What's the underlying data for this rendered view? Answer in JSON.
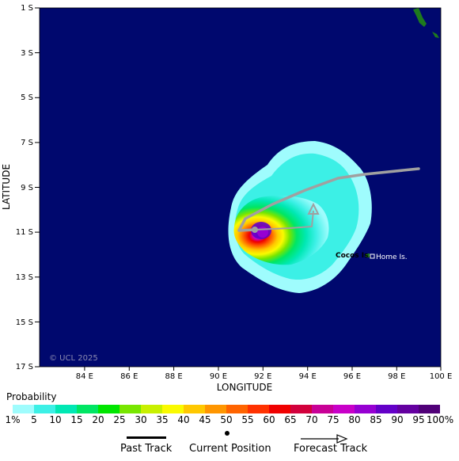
{
  "map": {
    "lat_ticks": [
      "1 S",
      "3 S",
      "5 S",
      "7 S",
      "9 S",
      "11 S",
      "13 S",
      "15 S",
      "17 S"
    ],
    "lon_ticks": [
      "84 E",
      "86 E",
      "88 E",
      "90 E",
      "92 E",
      "94 E",
      "96 E",
      "98 E",
      "100 E"
    ],
    "x_label": "LONGITUDE",
    "y_label": "LATITUDE",
    "copyright": "© UCL 2025",
    "places": {
      "cocos": "Cocos Is.",
      "home": "Home Is."
    },
    "colors": {
      "ocean": "#00086e",
      "land": "#1e7a1e",
      "track": "#a0a0a0"
    }
  },
  "legend": {
    "title": "Probability",
    "labels": [
      "1%",
      "5",
      "10",
      "15",
      "20",
      "25",
      "30",
      "35",
      "40",
      "45",
      "50",
      "55",
      "60",
      "65",
      "70",
      "75",
      "80",
      "85",
      "90",
      "95",
      "100%"
    ],
    "colors": [
      "#9ffcfd",
      "#3cf0e6",
      "#00e8b4",
      "#00e664",
      "#00e600",
      "#78e600",
      "#c8f000",
      "#fafa00",
      "#ffc800",
      "#ff9600",
      "#ff6400",
      "#ff3200",
      "#f00000",
      "#d2003c",
      "#c80096",
      "#c800c8",
      "#9600d2",
      "#6400c8",
      "#6400a0",
      "#500078"
    ]
  },
  "track_key": {
    "past": "Past Track",
    "current": "Current Position",
    "forecast": "Forecast Track"
  }
}
